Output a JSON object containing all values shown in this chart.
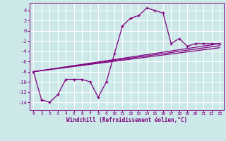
{
  "xlabel": "Windchill (Refroidissement éolien,°C)",
  "bg_color": "#cce8e8",
  "line_color": "#800080",
  "grid_color": "#ffffff",
  "xlim": [
    -0.5,
    23.5
  ],
  "ylim": [
    -15.5,
    5.5
  ],
  "yticks": [
    -14,
    -12,
    -10,
    -8,
    -6,
    -4,
    -2,
    0,
    2,
    4
  ],
  "xticks": [
    0,
    1,
    2,
    3,
    4,
    5,
    6,
    7,
    8,
    9,
    10,
    11,
    12,
    13,
    14,
    15,
    16,
    17,
    18,
    19,
    20,
    21,
    22,
    23
  ],
  "series1_x": [
    0,
    1,
    2,
    3,
    4,
    5,
    6,
    7,
    8,
    9,
    10,
    11,
    12,
    13,
    14,
    15,
    16,
    17,
    18,
    19,
    20,
    21,
    22,
    23
  ],
  "series1_y": [
    -8,
    -13.5,
    -14,
    -12.5,
    -9.5,
    -9.5,
    -9.5,
    -10,
    -13,
    -10,
    -4.5,
    1,
    2.5,
    3,
    4.5,
    4,
    3.5,
    -2.5,
    -1.5,
    -3,
    -2.5,
    -2.5,
    -2.5,
    -2.5
  ],
  "series2_x": [
    0,
    23
  ],
  "series2_y": [
    -8,
    -2.5
  ],
  "series3_x": [
    0,
    23
  ],
  "series3_y": [
    -8,
    -2.9
  ],
  "series4_x": [
    0,
    23
  ],
  "series4_y": [
    -8,
    -3.3
  ]
}
